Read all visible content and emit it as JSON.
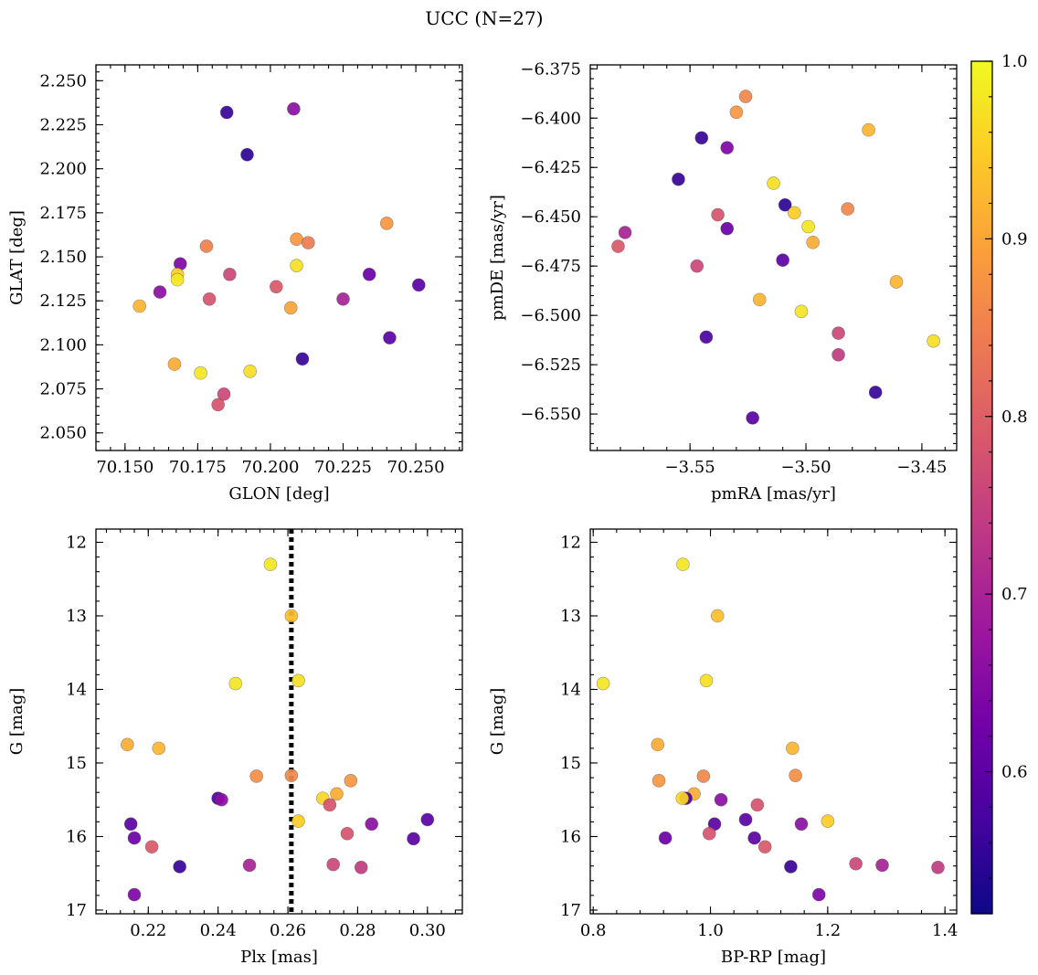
{
  "figure": {
    "title": "UCC (N=27)"
  },
  "colorbar": {
    "min": 0.52,
    "max": 1.0,
    "ticks": [
      0.6,
      0.7,
      0.8,
      0.9,
      1.0
    ],
    "tick_labels": [
      "0.6",
      "0.7",
      "0.8",
      "0.9",
      "1.0"
    ],
    "minor_step": 0.02,
    "colormap": "plasma",
    "colormap_stops": [
      "#0d0887",
      "#46039f",
      "#7201a8",
      "#9c179e",
      "#bd3786",
      "#d8576b",
      "#ed7953",
      "#fb9f3a",
      "#fdca26",
      "#f0f921"
    ]
  },
  "chart_data": [
    {
      "type": "scatter",
      "panel": "top-left",
      "xlabel": "GLON [deg]",
      "ylabel": "GLAT [deg]",
      "xlim": [
        70.14,
        70.266
      ],
      "ylim": [
        2.04,
        2.259
      ],
      "x_ticks": [
        70.15,
        70.175,
        70.2,
        70.225,
        70.25
      ],
      "x_tick_labels": [
        "70.150",
        "70.175",
        "70.200",
        "70.225",
        "70.250"
      ],
      "x_minor_step": 0.005,
      "y_ticks": [
        2.05,
        2.075,
        2.1,
        2.125,
        2.15,
        2.175,
        2.2,
        2.225,
        2.25
      ],
      "y_tick_labels": [
        "2.050",
        "2.075",
        "2.100",
        "2.125",
        "2.150",
        "2.175",
        "2.200",
        "2.225",
        "2.250"
      ],
      "y_minor_step": 0.005,
      "inverted_y": false,
      "points": [
        {
          "x": 70.208,
          "y": 2.234,
          "c": 0.66
        },
        {
          "x": 70.185,
          "y": 2.232,
          "c": 0.56
        },
        {
          "x": 70.192,
          "y": 2.208,
          "c": 0.55
        },
        {
          "x": 70.24,
          "y": 2.169,
          "c": 0.88
        },
        {
          "x": 70.209,
          "y": 2.16,
          "c": 0.88
        },
        {
          "x": 70.213,
          "y": 2.158,
          "c": 0.84
        },
        {
          "x": 70.178,
          "y": 2.156,
          "c": 0.85
        },
        {
          "x": 70.169,
          "y": 2.146,
          "c": 0.64
        },
        {
          "x": 70.209,
          "y": 2.145,
          "c": 0.97
        },
        {
          "x": 70.168,
          "y": 2.14,
          "c": 0.95
        },
        {
          "x": 70.186,
          "y": 2.14,
          "c": 0.76
        },
        {
          "x": 70.234,
          "y": 2.14,
          "c": 0.62
        },
        {
          "x": 70.168,
          "y": 2.137,
          "c": 0.98
        },
        {
          "x": 70.251,
          "y": 2.134,
          "c": 0.6
        },
        {
          "x": 70.202,
          "y": 2.133,
          "c": 0.79
        },
        {
          "x": 70.162,
          "y": 2.13,
          "c": 0.66
        },
        {
          "x": 70.179,
          "y": 2.126,
          "c": 0.78
        },
        {
          "x": 70.225,
          "y": 2.126,
          "c": 0.7
        },
        {
          "x": 70.155,
          "y": 2.122,
          "c": 0.92
        },
        {
          "x": 70.207,
          "y": 2.121,
          "c": 0.9
        },
        {
          "x": 70.241,
          "y": 2.104,
          "c": 0.6
        },
        {
          "x": 70.211,
          "y": 2.092,
          "c": 0.56
        },
        {
          "x": 70.167,
          "y": 2.089,
          "c": 0.91
        },
        {
          "x": 70.193,
          "y": 2.085,
          "c": 0.97
        },
        {
          "x": 70.176,
          "y": 2.084,
          "c": 0.98
        },
        {
          "x": 70.184,
          "y": 2.072,
          "c": 0.76
        },
        {
          "x": 70.182,
          "y": 2.066,
          "c": 0.78
        }
      ]
    },
    {
      "type": "scatter",
      "panel": "top-right",
      "xlabel": "pmRA [mas/yr]",
      "ylabel": "pmDE [mas/yr]",
      "xlim": [
        -3.593,
        -3.435
      ],
      "ylim": [
        -6.5685,
        -6.373
      ],
      "x_ticks": [
        -3.55,
        -3.5,
        -3.45
      ],
      "x_tick_labels": [
        "−3.55",
        "−3.50",
        "−3.45"
      ],
      "x_minor_step": 0.01,
      "y_ticks": [
        -6.55,
        -6.525,
        -6.5,
        -6.475,
        -6.45,
        -6.425,
        -6.4,
        -6.375
      ],
      "y_tick_labels": [
        "−6.550",
        "−6.525",
        "−6.500",
        "−6.475",
        "−6.450",
        "−6.425",
        "−6.400",
        "−6.375"
      ],
      "y_minor_step": 0.005,
      "inverted_y": false,
      "points": [
        {
          "x": -3.526,
          "y": -6.389,
          "c": 0.86
        },
        {
          "x": -3.53,
          "y": -6.397,
          "c": 0.88
        },
        {
          "x": -3.473,
          "y": -6.406,
          "c": 0.92
        },
        {
          "x": -3.545,
          "y": -6.41,
          "c": 0.56
        },
        {
          "x": -3.534,
          "y": -6.415,
          "c": 0.64
        },
        {
          "x": -3.555,
          "y": -6.431,
          "c": 0.56
        },
        {
          "x": -3.514,
          "y": -6.433,
          "c": 0.97
        },
        {
          "x": -3.509,
          "y": -6.444,
          "c": 0.55
        },
        {
          "x": -3.482,
          "y": -6.446,
          "c": 0.86
        },
        {
          "x": -3.505,
          "y": -6.448,
          "c": 0.95
        },
        {
          "x": -3.538,
          "y": -6.449,
          "c": 0.78
        },
        {
          "x": -3.499,
          "y": -6.455,
          "c": 0.98
        },
        {
          "x": -3.534,
          "y": -6.456,
          "c": 0.62
        },
        {
          "x": -3.578,
          "y": -6.458,
          "c": 0.7
        },
        {
          "x": -3.497,
          "y": -6.463,
          "c": 0.91
        },
        {
          "x": -3.581,
          "y": -6.465,
          "c": 0.79
        },
        {
          "x": -3.51,
          "y": -6.472,
          "c": 0.6
        },
        {
          "x": -3.547,
          "y": -6.475,
          "c": 0.76
        },
        {
          "x": -3.461,
          "y": -6.483,
          "c": 0.92
        },
        {
          "x": -3.52,
          "y": -6.492,
          "c": 0.92
        },
        {
          "x": -3.502,
          "y": -6.498,
          "c": 0.98
        },
        {
          "x": -3.486,
          "y": -6.509,
          "c": 0.76
        },
        {
          "x": -3.543,
          "y": -6.511,
          "c": 0.58
        },
        {
          "x": -3.445,
          "y": -6.513,
          "c": 0.97
        },
        {
          "x": -3.486,
          "y": -6.52,
          "c": 0.74
        },
        {
          "x": -3.47,
          "y": -6.539,
          "c": 0.56
        },
        {
          "x": -3.523,
          "y": -6.552,
          "c": 0.6
        }
      ]
    },
    {
      "type": "scatter",
      "panel": "bottom-left",
      "xlabel": "Plx [mas]",
      "ylabel": "G [mag]",
      "xlim": [
        0.205,
        0.31
      ],
      "ylim": [
        17.05,
        11.82
      ],
      "x_ticks": [
        0.22,
        0.24,
        0.26,
        0.28,
        0.3
      ],
      "x_tick_labels": [
        "0.22",
        "0.24",
        "0.26",
        "0.28",
        "0.30"
      ],
      "x_minor_step": 0.004,
      "y_ticks": [
        12,
        13,
        14,
        15,
        16,
        17
      ],
      "y_tick_labels": [
        "12",
        "13",
        "14",
        "15",
        "16",
        "17"
      ],
      "y_minor_step": 0.2,
      "inverted_y": true,
      "vline": 0.261,
      "points": [
        {
          "x": 0.255,
          "y": 12.3,
          "c": 0.98
        },
        {
          "x": 0.261,
          "y": 13.0,
          "c": 0.93
        },
        {
          "x": 0.245,
          "y": 13.92,
          "c": 0.98
        },
        {
          "x": 0.263,
          "y": 13.88,
          "c": 0.97
        },
        {
          "x": 0.214,
          "y": 14.75,
          "c": 0.91
        },
        {
          "x": 0.223,
          "y": 14.8,
          "c": 0.92
        },
        {
          "x": 0.251,
          "y": 15.18,
          "c": 0.87
        },
        {
          "x": 0.261,
          "y": 15.17,
          "c": 0.86
        },
        {
          "x": 0.278,
          "y": 15.24,
          "c": 0.88
        },
        {
          "x": 0.274,
          "y": 15.42,
          "c": 0.91
        },
        {
          "x": 0.27,
          "y": 15.48,
          "c": 0.96
        },
        {
          "x": 0.24,
          "y": 15.48,
          "c": 0.58
        },
        {
          "x": 0.241,
          "y": 15.5,
          "c": 0.66
        },
        {
          "x": 0.272,
          "y": 15.57,
          "c": 0.78
        },
        {
          "x": 0.3,
          "y": 15.77,
          "c": 0.6
        },
        {
          "x": 0.263,
          "y": 15.79,
          "c": 0.95
        },
        {
          "x": 0.215,
          "y": 15.83,
          "c": 0.6
        },
        {
          "x": 0.284,
          "y": 15.83,
          "c": 0.66
        },
        {
          "x": 0.277,
          "y": 15.96,
          "c": 0.78
        },
        {
          "x": 0.216,
          "y": 16.02,
          "c": 0.62
        },
        {
          "x": 0.296,
          "y": 16.03,
          "c": 0.6
        },
        {
          "x": 0.221,
          "y": 16.14,
          "c": 0.79
        },
        {
          "x": 0.273,
          "y": 16.38,
          "c": 0.76
        },
        {
          "x": 0.249,
          "y": 16.39,
          "c": 0.7
        },
        {
          "x": 0.229,
          "y": 16.41,
          "c": 0.56
        },
        {
          "x": 0.281,
          "y": 16.42,
          "c": 0.74
        },
        {
          "x": 0.216,
          "y": 16.79,
          "c": 0.64
        }
      ]
    },
    {
      "type": "scatter",
      "panel": "bottom-right",
      "xlabel": "BP-RP [mag]",
      "ylabel": "G [mag]",
      "xlim": [
        0.795,
        1.42
      ],
      "ylim": [
        17.05,
        11.82
      ],
      "x_ticks": [
        0.8,
        1.0,
        1.2,
        1.4
      ],
      "x_tick_labels": [
        "0.8",
        "1.0",
        "1.2",
        "1.4"
      ],
      "x_minor_step": 0.04,
      "y_ticks": [
        12,
        13,
        14,
        15,
        16,
        17
      ],
      "y_tick_labels": [
        "12",
        "13",
        "14",
        "15",
        "16",
        "17"
      ],
      "y_minor_step": 0.2,
      "inverted_y": true,
      "points": [
        {
          "x": 0.953,
          "y": 12.3,
          "c": 0.98
        },
        {
          "x": 1.012,
          "y": 13.0,
          "c": 0.93
        },
        {
          "x": 0.817,
          "y": 13.92,
          "c": 0.98
        },
        {
          "x": 0.993,
          "y": 13.88,
          "c": 0.97
        },
        {
          "x": 0.91,
          "y": 14.75,
          "c": 0.91
        },
        {
          "x": 1.14,
          "y": 14.8,
          "c": 0.92
        },
        {
          "x": 1.145,
          "y": 15.17,
          "c": 0.87
        },
        {
          "x": 0.988,
          "y": 15.18,
          "c": 0.86
        },
        {
          "x": 0.912,
          "y": 15.24,
          "c": 0.88
        },
        {
          "x": 0.972,
          "y": 15.42,
          "c": 0.91
        },
        {
          "x": 0.958,
          "y": 15.48,
          "c": 0.58
        },
        {
          "x": 0.952,
          "y": 15.48,
          "c": 0.96
        },
        {
          "x": 1.018,
          "y": 15.5,
          "c": 0.66
        },
        {
          "x": 1.08,
          "y": 15.57,
          "c": 0.78
        },
        {
          "x": 1.06,
          "y": 15.77,
          "c": 0.6
        },
        {
          "x": 1.2,
          "y": 15.79,
          "c": 0.95
        },
        {
          "x": 1.007,
          "y": 15.83,
          "c": 0.6
        },
        {
          "x": 1.155,
          "y": 15.83,
          "c": 0.66
        },
        {
          "x": 0.998,
          "y": 15.96,
          "c": 0.78
        },
        {
          "x": 0.923,
          "y": 16.02,
          "c": 0.62
        },
        {
          "x": 1.075,
          "y": 16.02,
          "c": 0.6
        },
        {
          "x": 1.093,
          "y": 16.14,
          "c": 0.79
        },
        {
          "x": 1.248,
          "y": 16.37,
          "c": 0.76
        },
        {
          "x": 1.293,
          "y": 16.39,
          "c": 0.7
        },
        {
          "x": 1.388,
          "y": 16.42,
          "c": 0.74
        },
        {
          "x": 1.137,
          "y": 16.41,
          "c": 0.56
        },
        {
          "x": 1.185,
          "y": 16.79,
          "c": 0.64
        }
      ]
    }
  ]
}
